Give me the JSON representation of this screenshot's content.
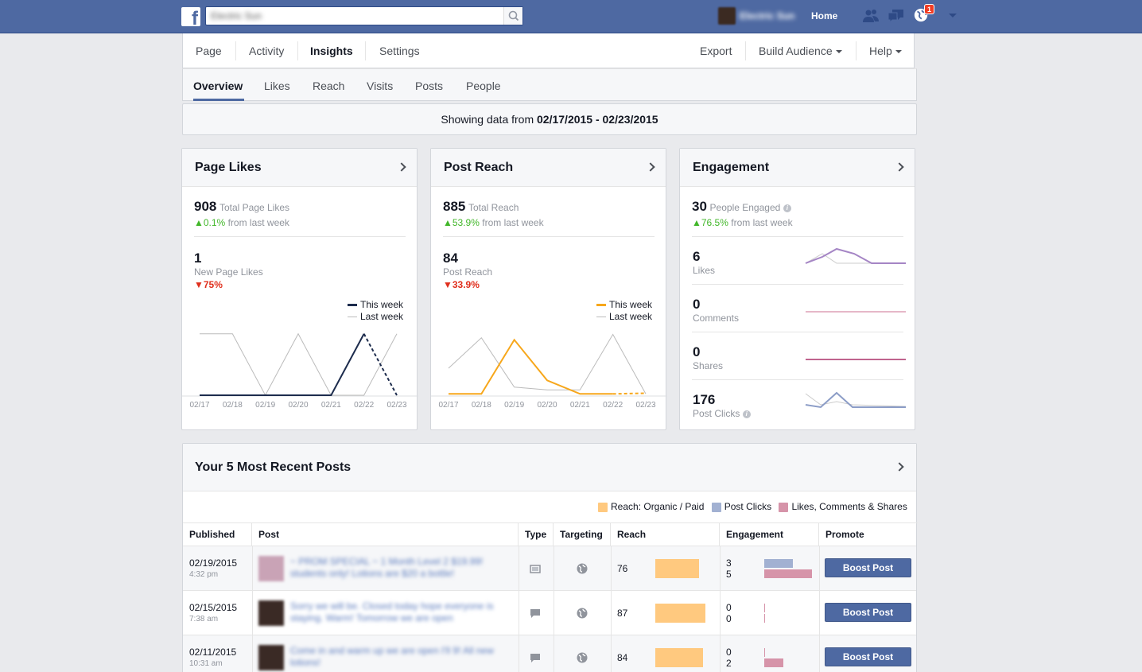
{
  "topbar": {
    "search_placeholder": "Electric Sun",
    "profile_name": "Electric Sun",
    "home": "Home",
    "notification_count": "1"
  },
  "page_nav": {
    "page": "Page",
    "activity": "Activity",
    "insights": "Insights",
    "settings": "Settings",
    "export": "Export",
    "build_audience": "Build Audience",
    "help": "Help"
  },
  "sub_nav": {
    "overview": "Overview",
    "likes": "Likes",
    "reach": "Reach",
    "visits": "Visits",
    "posts": "Posts",
    "people": "People"
  },
  "date_bar": {
    "prefix": "Showing data from ",
    "range": "02/17/2015 - 02/23/2015"
  },
  "page_likes": {
    "title": "Page Likes",
    "total": "908",
    "total_label": "Total Page Likes",
    "change": "▲0.1%",
    "change_label": " from last week",
    "new_num": "1",
    "new_label": "New Page Likes",
    "new_change": "▼75%",
    "legend_this": "This week",
    "legend_last": "Last week"
  },
  "post_reach": {
    "title": "Post Reach",
    "total": "885",
    "total_label": "Total Reach",
    "change": "▲53.9%",
    "change_label": " from last week",
    "new_num": "84",
    "new_label": "Post Reach",
    "new_change": "▼33.9%",
    "legend_this": "This week",
    "legend_last": "Last week"
  },
  "engagement": {
    "title": "Engagement",
    "total": "30",
    "total_label": "People Engaged",
    "change": "▲76.5%",
    "change_label": " from last week",
    "metrics": [
      {
        "num": "6",
        "label": "Likes"
      },
      {
        "num": "0",
        "label": "Comments"
      },
      {
        "num": "0",
        "label": "Shares"
      },
      {
        "num": "176",
        "label": "Post Clicks"
      }
    ]
  },
  "chart_data": [
    {
      "type": "line",
      "title": "Page Likes",
      "x": [
        "02/17",
        "02/18",
        "02/19",
        "02/20",
        "02/21",
        "02/22",
        "02/23"
      ],
      "series": [
        {
          "name": "This week",
          "color": "#1d2c4d",
          "values": [
            0,
            0,
            0,
            0,
            0,
            1,
            0
          ]
        },
        {
          "name": "Last week",
          "color": "#bbbbbb",
          "values": [
            1,
            1,
            0,
            1,
            0,
            0,
            1
          ]
        }
      ],
      "ylim": [
        0,
        1.1
      ]
    },
    {
      "type": "line",
      "title": "Post Reach",
      "x": [
        "02/17",
        "02/18",
        "02/19",
        "02/20",
        "02/21",
        "02/22",
        "02/23"
      ],
      "series": [
        {
          "name": "This week",
          "color": "#f7a71b",
          "values": [
            2,
            2,
            82,
            22,
            2,
            2,
            3
          ]
        },
        {
          "name": "Last week",
          "color": "#bbbbbb",
          "values": [
            40,
            85,
            12,
            8,
            8,
            90,
            2
          ]
        }
      ],
      "ylim": [
        0,
        100
      ]
    }
  ],
  "posts": {
    "title": "Your 5 Most Recent Posts",
    "legend": [
      {
        "label": "Reach: Organic / Paid",
        "color": "#ffc97f"
      },
      {
        "label": "Post Clicks",
        "color": "#a2b1d2"
      },
      {
        "label": "Likes, Comments & Shares",
        "color": "#d694a9"
      }
    ],
    "columns": [
      "Published",
      "Post",
      "Type",
      "Targeting",
      "Reach",
      "Engagement",
      "Promote"
    ],
    "rows": [
      {
        "date": "02/19/2015",
        "time": "4:32 pm",
        "text": "~ PROM SPECIAL ~ 1 Month Level 2 $19.99! students only! Lotions are $20 a bottle!",
        "reach": "76",
        "reach_fraction": 0.76,
        "clicks": "3",
        "lcs": "5",
        "clicks_fraction": 0.6,
        "lcs_fraction": 1.0,
        "boost": "Boost Post"
      },
      {
        "date": "02/15/2015",
        "time": "7:38 am",
        "text": "Sorry we will be. Closed today hope everyone is staying. Warm! Tomorrow we are open",
        "reach": "87",
        "reach_fraction": 0.87,
        "clicks": "0",
        "lcs": "0",
        "clicks_fraction": 0.0,
        "lcs_fraction": 0.0,
        "boost": "Boost Post"
      },
      {
        "date": "02/11/2015",
        "time": "10:31 am",
        "text": "Come in and warm up we are open I'll 9! All new lotions!",
        "reach": "84",
        "reach_fraction": 0.84,
        "clicks": "0",
        "lcs": "2",
        "clicks_fraction": 0.0,
        "lcs_fraction": 0.4,
        "boost": "Boost Post"
      }
    ]
  }
}
